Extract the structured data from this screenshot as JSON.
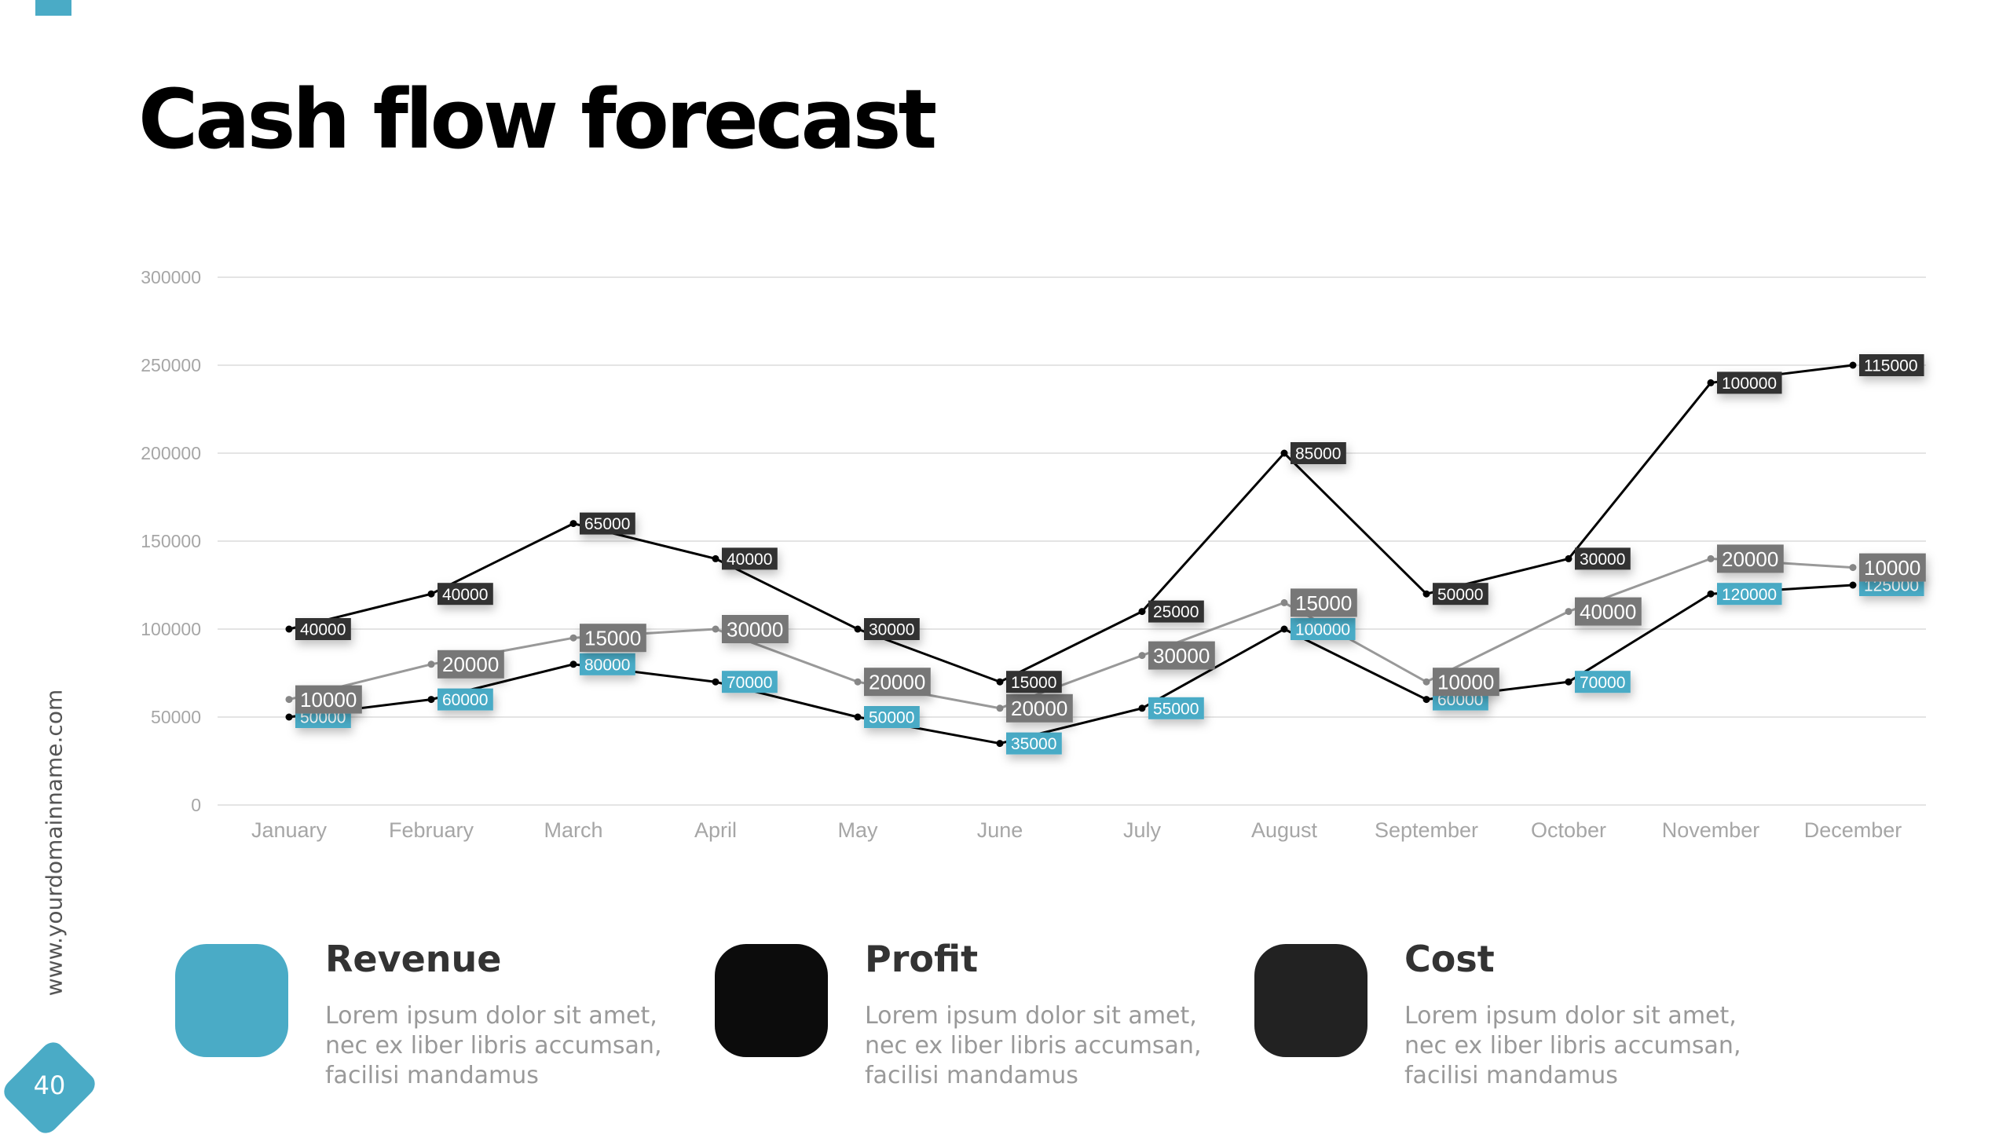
{
  "title": "Cash flow forecast",
  "side_url": "www.yourdomainname.com",
  "page_number": "40",
  "colors": {
    "accent": "#4aabc6",
    "profit": "#0c0c0c",
    "cost": "#222222"
  },
  "legend": [
    {
      "title": "Revenue",
      "text": "Lorem ipsum dolor sit amet, nec ex liber libris accumsan, facilisi mandamus",
      "color": "#4aabc6"
    },
    {
      "title": "Profit",
      "text": "Lorem ipsum dolor sit amet, nec ex liber libris accumsan, facilisi mandamus",
      "color": "#0c0c0c"
    },
    {
      "title": "Cost",
      "text": "Lorem ipsum dolor sit amet, nec ex liber libris accumsan, facilisi mandamus",
      "color": "#222222"
    }
  ],
  "chart_data": {
    "type": "line",
    "stacked": true,
    "title": "",
    "xlabel": "",
    "ylabel": "",
    "ylim": [
      0,
      300000
    ],
    "yticks": [
      "0",
      "50000",
      "100000",
      "150000",
      "200000",
      "250000",
      "300000"
    ],
    "categories": [
      "January",
      "February",
      "March",
      "April",
      "May",
      "June",
      "July",
      "August",
      "September",
      "October",
      "November",
      "December"
    ],
    "grid": true,
    "series": [
      {
        "name": "Revenue",
        "label_color": "#4aabc6",
        "line_color": "#000000",
        "values": [
          50000,
          60000,
          80000,
          70000,
          50000,
          35000,
          55000,
          100000,
          60000,
          70000,
          120000,
          125000
        ]
      },
      {
        "name": "Profit",
        "label_color": "#777777",
        "line_color": "#999999",
        "values": [
          10000,
          20000,
          15000,
          30000,
          20000,
          20000,
          30000,
          15000,
          10000,
          40000,
          20000,
          10000
        ]
      },
      {
        "name": "Cost",
        "label_color": "#333333",
        "line_color": "#000000",
        "values": [
          40000,
          40000,
          65000,
          40000,
          30000,
          15000,
          25000,
          85000,
          50000,
          30000,
          100000,
          115000
        ]
      }
    ]
  }
}
